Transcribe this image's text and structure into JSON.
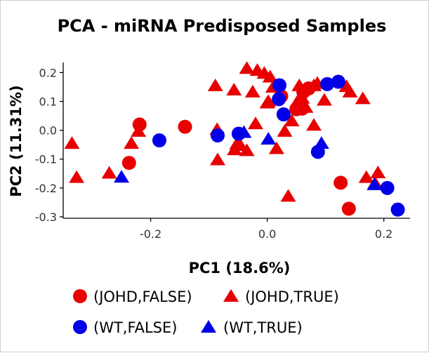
{
  "chart_data": {
    "type": "scatter",
    "title": "PCA - miRNA Predisposed Samples",
    "xlabel": "PC1 (18.6%)",
    "ylabel": "PC2 (11.31%)",
    "xlim": [
      -0.35,
      0.245
    ],
    "ylim": [
      -0.305,
      0.235
    ],
    "xticks": [
      -0.2,
      0.0,
      0.2
    ],
    "xtick_labels": [
      "-0.2",
      "0.0",
      "0.2"
    ],
    "yticks": [
      -0.3,
      -0.2,
      -0.1,
      0.0,
      0.1,
      0.2
    ],
    "ytick_labels": [
      "-0.3",
      "-0.2",
      "-0.1",
      "0.0",
      "0.1",
      "0.2"
    ],
    "grid": false,
    "legend_position": "bottom",
    "series": [
      {
        "name": "(JOHD,FALSE)",
        "marker": "circle",
        "color": "#e80000",
        "points": [
          [
            -0.219,
            0.02
          ],
          [
            -0.141,
            0.012
          ],
          [
            -0.237,
            -0.113
          ],
          [
            0.024,
            0.118
          ],
          [
            0.062,
            0.133
          ],
          [
            0.06,
            0.075
          ],
          [
            0.05,
            0.073
          ],
          [
            0.126,
            -0.182
          ],
          [
            0.14,
            -0.272
          ],
          [
            0.071,
            0.145
          ]
        ]
      },
      {
        "name": "(JOHD,TRUE)",
        "marker": "triangle",
        "color": "#e80000",
        "points": [
          [
            -0.335,
            -0.045
          ],
          [
            -0.327,
            -0.163
          ],
          [
            -0.271,
            -0.148
          ],
          [
            -0.233,
            -0.045
          ],
          [
            -0.221,
            -0.003
          ],
          [
            -0.085,
            -0.102
          ],
          [
            -0.086,
            0.003
          ],
          [
            -0.056,
            -0.067
          ],
          [
            -0.052,
            -0.047
          ],
          [
            -0.046,
            -0.052
          ],
          [
            -0.035,
            -0.07
          ],
          [
            -0.02,
            0.023
          ],
          [
            -0.025,
            0.133
          ],
          [
            -0.089,
            0.155
          ],
          [
            -0.057,
            0.14
          ],
          [
            -0.035,
            0.215
          ],
          [
            -0.017,
            0.208
          ],
          [
            -0.005,
            0.198
          ],
          [
            0.005,
            0.185
          ],
          [
            0.01,
            0.15
          ],
          [
            0.0,
            0.095
          ],
          [
            0.002,
            0.1
          ],
          [
            0.016,
            -0.063
          ],
          [
            0.03,
            -0.003
          ],
          [
            0.036,
            -0.228
          ],
          [
            0.042,
            0.033
          ],
          [
            0.052,
            0.1
          ],
          [
            0.055,
            0.155
          ],
          [
            0.06,
            0.112
          ],
          [
            0.066,
            0.08
          ],
          [
            0.08,
            0.155
          ],
          [
            0.086,
            0.163
          ],
          [
            0.098,
            0.105
          ],
          [
            0.136,
            0.152
          ],
          [
            0.142,
            0.133
          ],
          [
            0.164,
            0.11
          ],
          [
            0.17,
            -0.163
          ],
          [
            0.185,
            -0.183
          ],
          [
            0.19,
            -0.147
          ],
          [
            0.08,
            0.018
          ]
        ]
      },
      {
        "name": "(WT,FALSE)",
        "marker": "circle",
        "color": "#0000e8",
        "points": [
          [
            -0.185,
            -0.035
          ],
          [
            -0.085,
            -0.018
          ],
          [
            -0.049,
            -0.012
          ],
          [
            0.021,
            0.156
          ],
          [
            0.02,
            0.108
          ],
          [
            0.028,
            0.055
          ],
          [
            0.087,
            -0.075
          ],
          [
            0.103,
            0.16
          ],
          [
            0.122,
            0.168
          ],
          [
            0.206,
            -0.2
          ],
          [
            0.224,
            -0.275
          ]
        ]
      },
      {
        "name": "(WT,TRUE)",
        "marker": "triangle",
        "color": "#0000e8",
        "points": [
          [
            -0.25,
            -0.162
          ],
          [
            -0.04,
            -0.007
          ],
          [
            0.002,
            -0.03
          ],
          [
            0.093,
            -0.045
          ],
          [
            0.184,
            -0.188
          ]
        ]
      }
    ]
  },
  "legend": [
    {
      "label": "(JOHD,FALSE)",
      "marker": "circle",
      "color": "#e80000"
    },
    {
      "label": "(JOHD,TRUE)",
      "marker": "triangle",
      "color": "#e80000"
    },
    {
      "label": "(WT,FALSE)",
      "marker": "circle",
      "color": "#0000e8"
    },
    {
      "label": "(WT,TRUE)",
      "marker": "triangle",
      "color": "#0000e8"
    }
  ]
}
